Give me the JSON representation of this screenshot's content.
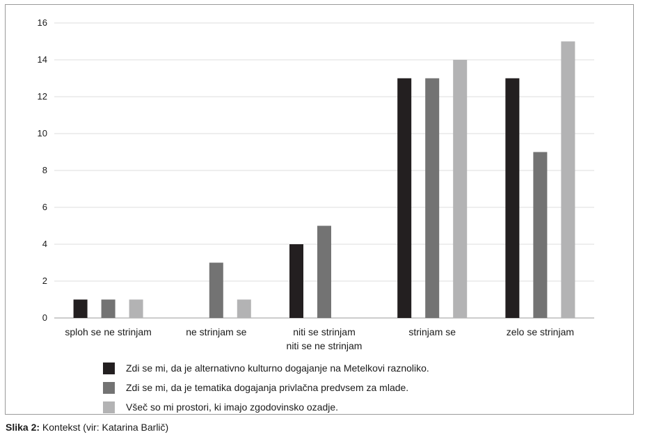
{
  "chart_data": {
    "type": "bar",
    "categories": [
      [
        "sploh se ne strinjam"
      ],
      [
        "ne strinjam se"
      ],
      [
        "niti se strinjam",
        "niti se ne strinjam"
      ],
      [
        "strinjam se"
      ],
      [
        "zelo se strinjam"
      ]
    ],
    "series": [
      {
        "name": "Zdi se mi, da je alternativno kulturno dogajanje na Metelkovi raznoliko.",
        "color": "#231f20",
        "values": [
          1,
          0,
          4,
          13,
          13
        ]
      },
      {
        "name": "Zdi se mi, da je tematika dogajanja privlačna predvsem za mlade.",
        "color": "#737373",
        "values": [
          1,
          3,
          5,
          13,
          9
        ]
      },
      {
        "name": "Všeč so mi prostori, ki imajo zgodovinsko ozadje.",
        "color": "#b3b3b4",
        "values": [
          1,
          1,
          0,
          14,
          15
        ]
      }
    ],
    "ylim": [
      0,
      16
    ],
    "yticks": [
      0,
      2,
      4,
      6,
      8,
      10,
      12,
      14,
      16
    ],
    "grid": true,
    "legend": "bottom"
  },
  "caption": {
    "label": "Slika 2:",
    "text": " Kontekst (vir: Katarina Barlič)"
  }
}
